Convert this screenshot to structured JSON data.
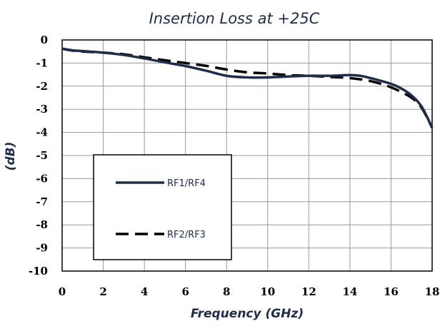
{
  "chart_data": {
    "type": "line",
    "title": "Insertion Loss at +25C",
    "xlabel": "Frequency (GHz)",
    "ylabel": "(dB)",
    "xlim": [
      0,
      18
    ],
    "ylim": [
      -10,
      0
    ],
    "x_ticks": [
      0,
      2,
      4,
      6,
      8,
      10,
      12,
      14,
      16,
      18
    ],
    "y_ticks": [
      0,
      -1,
      -2,
      -3,
      -4,
      -5,
      -6,
      -7,
      -8,
      -9,
      -10
    ],
    "grid": true,
    "legend_position": "lower-left",
    "series": [
      {
        "name": "RF1/RF4",
        "color": "#1f2d4d",
        "style": "solid",
        "x": [
          0,
          0.5,
          1,
          2,
          3,
          4,
          5,
          6,
          7,
          8,
          9,
          10,
          11,
          12,
          13,
          14,
          14.5,
          15,
          16,
          16.5,
          17,
          17.5,
          18
        ],
        "y": [
          -0.38,
          -0.45,
          -0.48,
          -0.55,
          -0.65,
          -0.8,
          -0.97,
          -1.13,
          -1.33,
          -1.55,
          -1.62,
          -1.62,
          -1.58,
          -1.55,
          -1.55,
          -1.52,
          -1.55,
          -1.65,
          -1.9,
          -2.1,
          -2.4,
          -2.9,
          -3.8
        ]
      },
      {
        "name": "RF2/RF3",
        "color": "#000000",
        "style": "dashed",
        "x": [
          0,
          0.5,
          1,
          2,
          3,
          4,
          5,
          6,
          7,
          8,
          9,
          10,
          11,
          12,
          13,
          14,
          15,
          16,
          17,
          17.5,
          18
        ],
        "y": [
          -0.38,
          -0.46,
          -0.5,
          -0.55,
          -0.62,
          -0.75,
          -0.88,
          -1.0,
          -1.12,
          -1.28,
          -1.4,
          -1.45,
          -1.52,
          -1.55,
          -1.6,
          -1.65,
          -1.78,
          -2.05,
          -2.5,
          -2.95,
          -3.8
        ]
      }
    ]
  }
}
